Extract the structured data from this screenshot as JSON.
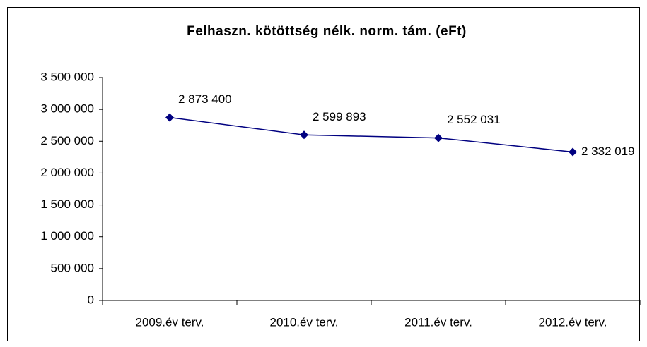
{
  "chart_data": {
    "type": "line",
    "title": "Felhaszn. kötöttség nélk. norm. tám. (eFt)",
    "categories": [
      "2009.év terv.",
      "2010.év terv.",
      "2011.év terv.",
      "2012.év terv."
    ],
    "series": [
      {
        "name": "Felhaszn. kötöttség nélk. norm. tám. (eFt)",
        "color": "#000080",
        "values": [
          2873400,
          2599893,
          2552031,
          2332019
        ],
        "value_labels": [
          "2 873 400",
          "2 599 893",
          "2 552 031",
          "2 332 019"
        ]
      }
    ],
    "ylim": [
      0,
      3500000
    ],
    "yticks": [
      0,
      {
        "value": 500000,
        "label": "500 000"
      },
      {
        "value": 1000000,
        "label": "1 000 000"
      },
      {
        "value": 1500000,
        "label": "1 500 000"
      },
      {
        "value": 2000000,
        "label": "2 000 000"
      },
      {
        "value": 2500000,
        "label": "2 500 000"
      },
      {
        "value": 3000000,
        "label": "3 000 000"
      },
      {
        "value": 3500000,
        "label": "3 500 000"
      }
    ],
    "grid": false
  }
}
